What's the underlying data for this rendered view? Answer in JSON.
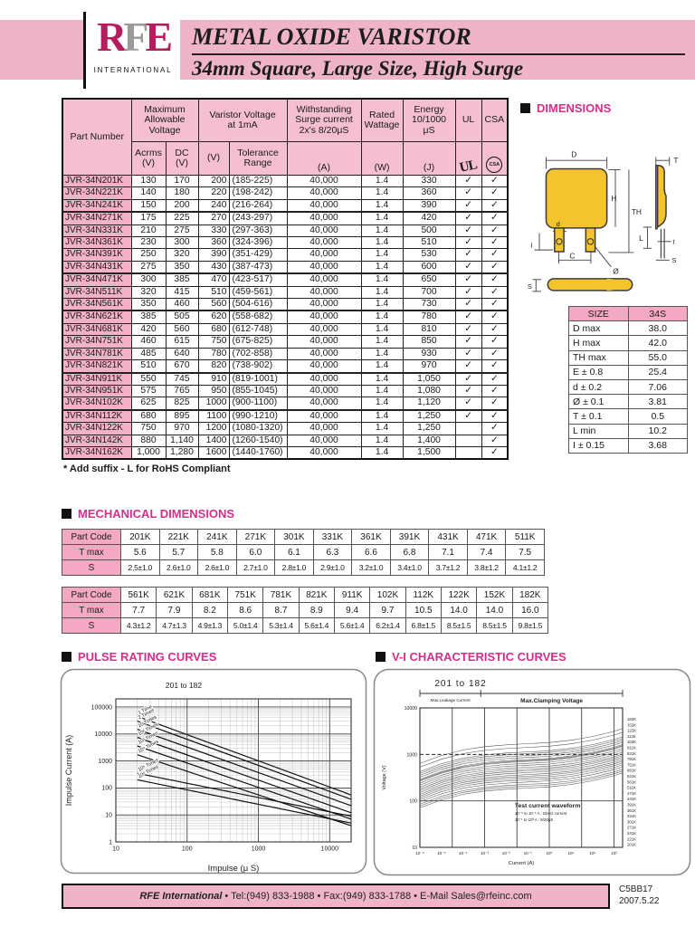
{
  "header": {
    "logo_r": "R",
    "logo_f": "F",
    "logo_e": "E",
    "logo_sub": "INTERNATIONAL",
    "title_line1": "METAL OXIDE VARISTOR",
    "title_line2": "34mm Square, Large Size, High Surge"
  },
  "colors": {
    "pink_band": "#f0b4c8",
    "pink_header": "#f5bfd1",
    "pink_label": "#f3a9c3",
    "magenta_title": "#d62e8c",
    "logo_crimson": "#b41e5e",
    "logo_gray": "#9b9b9b",
    "body_yellow": "#f4c42e"
  },
  "spec_table": {
    "headers": {
      "part_number": "Part Number",
      "max_voltage": "Maximum\nAllowable\nVoltage",
      "varistor_voltage": "Varistor Voltage\nat 1mA",
      "surge": "Withstanding\nSurge current\n2x's 8/20μS",
      "wattage": "Rated\nWattage",
      "energy": "Energy\n10/1000\nμS",
      "ul": "UL",
      "csa": "CSA",
      "acrms": "Acrms\n(V)",
      "dc": "DC\n(V)",
      "v": "(V)",
      "tolerance": "Tolerance\nRange",
      "a": "(A)",
      "w": "(W)",
      "j": "(J)"
    },
    "icons": {
      "ul_mark": "UL",
      "csa_mark": "CSA",
      "check": "✓"
    },
    "rows": [
      [
        "JVR-34N201K",
        "130",
        "170",
        "200",
        "(185-225)",
        "40,000",
        "1.4",
        "330",
        1,
        1
      ],
      [
        "JVR-34N221K",
        "140",
        "180",
        "220",
        "(198-242)",
        "40,000",
        "1.4",
        "360",
        1,
        1
      ],
      [
        "JVR-34N241K",
        "150",
        "200",
        "240",
        "(216-264)",
        "40,000",
        "1.4",
        "390",
        1,
        1
      ],
      [
        "JVR-34N271K",
        "175",
        "225",
        "270",
        "(243-297)",
        "40,000",
        "1.4",
        "420",
        1,
        1
      ],
      [
        "JVR-34N331K",
        "210",
        "275",
        "330",
        "(297-363)",
        "40,000",
        "1.4",
        "500",
        1,
        1
      ],
      [
        "JVR-34N361K",
        "230",
        "300",
        "360",
        "(324-396)",
        "40,000",
        "1.4",
        "510",
        1,
        1
      ],
      [
        "JVR-34N391K",
        "250",
        "320",
        "390",
        "(351-429)",
        "40,000",
        "1.4",
        "530",
        1,
        1
      ],
      [
        "JVR-34N431K",
        "275",
        "350",
        "430",
        "(387-473)",
        "40,000",
        "1.4",
        "600",
        1,
        1
      ],
      [
        "JVR-34N471K",
        "300",
        "385",
        "470",
        "(423-517)",
        "40,000",
        "1.4",
        "650",
        1,
        1
      ],
      [
        "JVR-34N511K",
        "320",
        "415",
        "510",
        "(459-561)",
        "40,000",
        "1.4",
        "700",
        1,
        1
      ],
      [
        "JVR-34N561K",
        "350",
        "460",
        "560",
        "(504-616)",
        "40,000",
        "1.4",
        "730",
        1,
        1
      ],
      [
        "JVR-34N621K",
        "385",
        "505",
        "620",
        "(558-682)",
        "40,000",
        "1.4",
        "780",
        1,
        1
      ],
      [
        "JVR-34N681K",
        "420",
        "560",
        "680",
        "(612-748)",
        "40,000",
        "1.4",
        "810",
        1,
        1
      ],
      [
        "JVR-34N751K",
        "460",
        "615",
        "750",
        "(675-825)",
        "40,000",
        "1.4",
        "850",
        1,
        1
      ],
      [
        "JVR-34N781K",
        "485",
        "640",
        "780",
        "(702-858)",
        "40,000",
        "1.4",
        "930",
        1,
        1
      ],
      [
        "JVR-34N821K",
        "510",
        "670",
        "820",
        "(738-902)",
        "40,000",
        "1.4",
        "970",
        1,
        1
      ],
      [
        "JVR-34N911K",
        "550",
        "745",
        "910",
        "(819-1001)",
        "40,000",
        "1.4",
        "1,050",
        1,
        1
      ],
      [
        "JVR-34N951K",
        "575",
        "765",
        "950",
        "(855-1045)",
        "40,000",
        "1.4",
        "1,080",
        1,
        1
      ],
      [
        "JVR-34N102K",
        "625",
        "825",
        "1000",
        "(900-1100)",
        "40,000",
        "1.4",
        "1,120",
        1,
        1
      ],
      [
        "JVR-34N112K",
        "680",
        "895",
        "1100",
        "(990-1210)",
        "40,000",
        "1.4",
        "1,250",
        1,
        1
      ],
      [
        "JVR-34N122K",
        "750",
        "970",
        "1200",
        "(1080-1320)",
        "40,000",
        "1.4",
        "1,250",
        0,
        1
      ],
      [
        "JVR-34N142K",
        "880",
        "1,140",
        "1400",
        "(1260-1540)",
        "40,000",
        "1.4",
        "1,400",
        0,
        1
      ],
      [
        "JVR-34N162K",
        "1,000",
        "1,280",
        "1600",
        "(1440-1760)",
        "40,000",
        "1.4",
        "1,500",
        0,
        1
      ]
    ],
    "group_breaks": [
      2,
      7,
      10,
      15,
      18
    ],
    "note": "* Add suffix - L for RoHS Compliant"
  },
  "sections": {
    "dimensions": "DIMENSIONS",
    "mechanical": "MECHANICAL DIMENSIONS",
    "pulse": "PULSE RATING CURVES",
    "vi": "V-I CHARACTERISTIC CURVES"
  },
  "dimensions": {
    "diagram_labels": {
      "D": "D",
      "H": "H",
      "TH": "TH",
      "d": "d",
      "C": "C",
      "dia": "Ø",
      "T": "T",
      "t": "t",
      "L": "L",
      "S": "S",
      "I": "I"
    },
    "size_table": {
      "headers": [
        "SIZE",
        "34S"
      ],
      "rows": [
        [
          "D max",
          "38.0"
        ],
        [
          "H max",
          "42.0"
        ],
        [
          "TH max",
          "55.0"
        ],
        [
          "E ± 0.8",
          "25.4"
        ],
        [
          "d ± 0.2",
          "7.06"
        ],
        [
          "Ø ± 0.1",
          "3.81"
        ],
        [
          "T ± 0.1",
          "0.5"
        ],
        [
          "L min",
          "10.2"
        ],
        [
          "I ± 0.15",
          "3.68"
        ]
      ]
    }
  },
  "mechanical": {
    "row_labels": [
      "Part Code",
      "T max",
      "S"
    ],
    "table1": {
      "codes": [
        "201K",
        "221K",
        "241K",
        "271K",
        "301K",
        "331K",
        "361K",
        "391K",
        "431K",
        "471K",
        "511K"
      ],
      "t_max": [
        "5.6",
        "5.7",
        "5.8",
        "6.0",
        "6.1",
        "6.3",
        "6.6",
        "6.8",
        "7.1",
        "7.4",
        "7.5"
      ],
      "s": [
        "2.5±1.0",
        "2.6±1.0",
        "2.6±1.0",
        "2.7±1.0",
        "2.8±1.0",
        "2.9±1.0",
        "3.2±1.0",
        "3.4±1.0",
        "3.7±1.2",
        "3.8±1.2",
        "4.1±1.2"
      ]
    },
    "table2": {
      "codes": [
        "561K",
        "621K",
        "681K",
        "751K",
        "781K",
        "821K",
        "911K",
        "102K",
        "112K",
        "122K",
        "152K",
        "182K"
      ],
      "t_max": [
        "7.7",
        "7.9",
        "8.2",
        "8.6",
        "8.7",
        "8.9",
        "9.4",
        "9.7",
        "10.5",
        "14.0",
        "14.0",
        "16.0"
      ],
      "s": [
        "4.3±1.2",
        "4.7±1.3",
        "4.9±1.3",
        "5.0±1.4",
        "5.3±1.4",
        "5.6±1.4",
        "5.6±1.4",
        "6.2±1.4",
        "6.8±1.5",
        "8.5±1.5",
        "8.5±1.5",
        "9.8±1.5"
      ]
    }
  },
  "chart_data": [
    {
      "id": "pulse",
      "type": "line",
      "title": "201 to 182",
      "xlabel": "Impulse (μ S)",
      "ylabel": "Impulse Current (A)",
      "xlim": [
        10,
        20000
      ],
      "ylim": [
        1,
        200000
      ],
      "xscale": "log",
      "yscale": "log",
      "grid": true,
      "xticks": [
        "10",
        "100",
        "1000",
        "10000"
      ],
      "yticks": [
        "1",
        "10",
        "100",
        "1000",
        "10000",
        "100000"
      ],
      "series": [
        {
          "name": "1 Time",
          "points": [
            [
              20,
              45000
            ],
            [
              20000,
              55
            ]
          ]
        },
        {
          "name": "2 Times",
          "points": [
            [
              20,
              30000
            ],
            [
              20000,
              38
            ]
          ]
        },
        {
          "name": "10 Times",
          "points": [
            [
              20,
              15000
            ],
            [
              20000,
              22
            ]
          ]
        },
        {
          "name": "10² Times",
          "points": [
            [
              20,
              7500
            ],
            [
              20000,
              12
            ]
          ]
        },
        {
          "name": "10³ Times",
          "points": [
            [
              20,
              3600
            ],
            [
              20000,
              7
            ]
          ]
        },
        {
          "name": "10⁴ Times",
          "points": [
            [
              20,
              1700
            ],
            [
              20000,
              4
            ]
          ]
        },
        {
          "name": "10⁵ Times",
          "points": [
            [
              20,
              350
            ],
            [
              20000,
              9
            ]
          ]
        },
        {
          "name": "10⁶ Times",
          "points": [
            [
              20,
              200
            ],
            [
              20000,
              5
            ]
          ]
        }
      ]
    },
    {
      "id": "vi",
      "type": "line",
      "title": "201 to 182",
      "xlabel": "Current (A)",
      "ylabel": "Voltage (V)",
      "xscale": "log",
      "yscale": "log",
      "ylim": [
        10,
        10000
      ],
      "xtick_labels": [
        "10⁻⁶",
        "10⁻⁵",
        "10⁻⁴",
        "10⁻³",
        "10⁻²",
        "10⁻¹",
        "10⁰",
        "10¹",
        "10²",
        "10³"
      ],
      "ytick_labels": [
        "10",
        "100",
        "1000",
        "10000"
      ],
      "top_labels": [
        "Max.Leakage Current",
        "Max.Clamping Voltage"
      ],
      "annotation": [
        "Test current waveform",
        "10⁻⁶ to 10⁻¹ A : Direct current",
        "10⁻¹ to 10³ A : 8/20μS"
      ],
      "curve_labels": [
        "182K",
        "152K",
        "122K",
        "112K",
        "102K",
        "911K",
        "821K",
        "781K",
        "751K",
        "681K",
        "621K",
        "561K",
        "511K",
        "471K",
        "431K",
        "391K",
        "361K",
        "331K",
        "301K",
        "271K",
        "241K",
        "221K",
        "201K"
      ],
      "nominal_voltages": [
        200,
        220,
        240,
        270,
        300,
        330,
        360,
        390,
        430,
        470,
        510,
        560,
        620,
        680,
        750,
        780,
        820,
        910,
        1000,
        1100,
        1200,
        1500,
        1800
      ],
      "shape_anchors": [
        [
          -6,
          -0.45
        ],
        [
          -5,
          -0.28
        ],
        [
          -4,
          -0.16
        ],
        [
          -3,
          -0.09
        ],
        [
          -2,
          -0.05
        ],
        [
          -1,
          -0.025
        ],
        [
          0,
          0
        ],
        [
          1,
          0.05
        ],
        [
          2,
          0.13
        ],
        [
          3,
          0.24
        ],
        [
          3.4,
          0.3
        ]
      ]
    }
  ],
  "footer": {
    "brand": "RFE International",
    "contact": " • Tel:(949) 833-1988 • Fax:(949) 833-1788 • E-Mail Sales@rfeinc.com",
    "code": "C5BB17",
    "date": "2007.5.22"
  }
}
